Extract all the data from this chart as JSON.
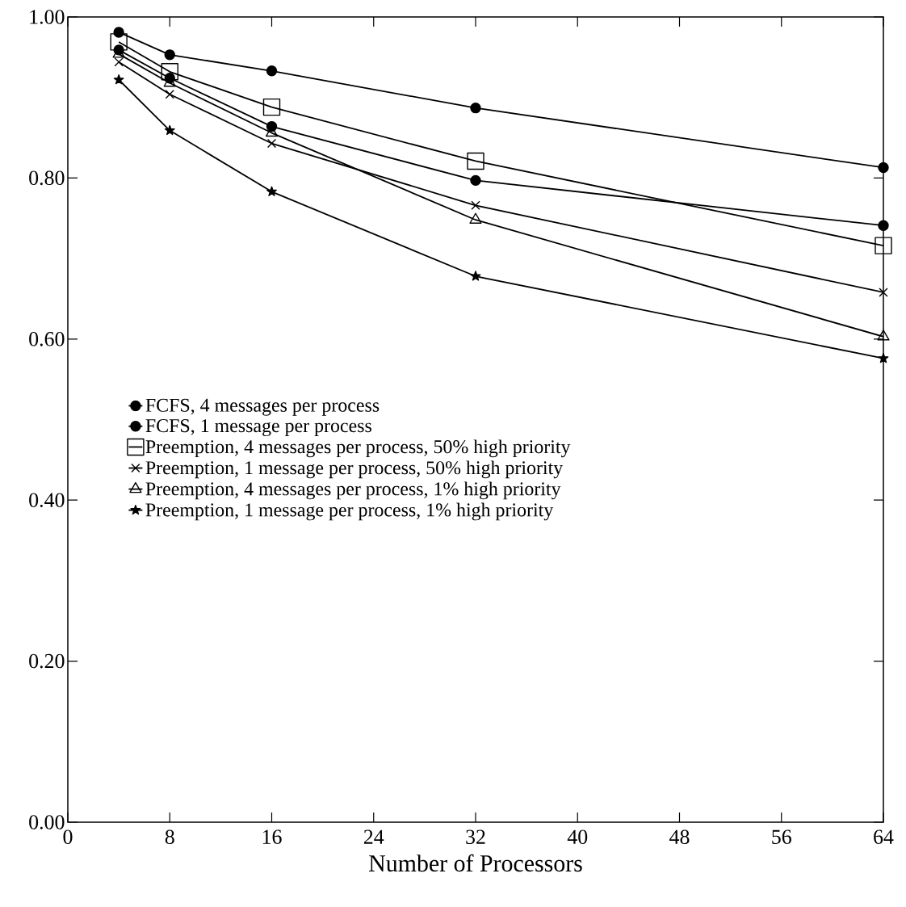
{
  "chart_data": {
    "type": "line",
    "xlabel": "Number of Processors",
    "x": [
      4,
      8,
      16,
      32,
      64
    ],
    "series": [
      {
        "name": "FCFS, 4 messages per process",
        "color": "#000000",
        "marker": "circle",
        "values": [
          0.981,
          0.953,
          0.933,
          0.887,
          0.813
        ]
      },
      {
        "name": "FCFS, 1 message per process",
        "color": "#000000",
        "marker": "circle",
        "values": [
          0.959,
          0.924,
          0.864,
          0.797,
          0.741
        ]
      },
      {
        "name": "Preemption, 4 messages per process, 50% high priority",
        "color": "#000000",
        "marker": "square",
        "values": [
          0.969,
          0.932,
          0.888,
          0.821,
          0.716
        ]
      },
      {
        "name": "Preemption, 1 message per process, 50% high priority",
        "color": "#000000",
        "marker": "cross",
        "values": [
          0.944,
          0.904,
          0.843,
          0.766,
          0.658
        ]
      },
      {
        "name": "Preemption, 4 messages per process, 1% high priority",
        "color": "#000000",
        "marker": "triangle",
        "values": [
          0.954,
          0.918,
          0.856,
          0.748,
          0.603
        ]
      },
      {
        "name": "Preemption, 1 message per process, 1% high priority",
        "color": "#000000",
        "marker": "star",
        "values": [
          0.922,
          0.859,
          0.783,
          0.678,
          0.576
        ]
      }
    ],
    "xlim": [
      0,
      64
    ],
    "xticks": [
      0,
      8,
      16,
      24,
      32,
      40,
      48,
      56,
      64
    ],
    "ylim": [
      0,
      1
    ],
    "yticks": [
      {
        "value": 0,
        "label": "0.00"
      },
      {
        "value": 0.2,
        "label": "0.20"
      },
      {
        "value": 0.4,
        "label": "0.40"
      },
      {
        "value": 0.6,
        "label": "0.60"
      },
      {
        "value": 0.8,
        "label": "0.80"
      },
      {
        "value": 1,
        "label": "1.00"
      }
    ],
    "grid": false,
    "legend": "left",
    "line_style": "solid"
  }
}
